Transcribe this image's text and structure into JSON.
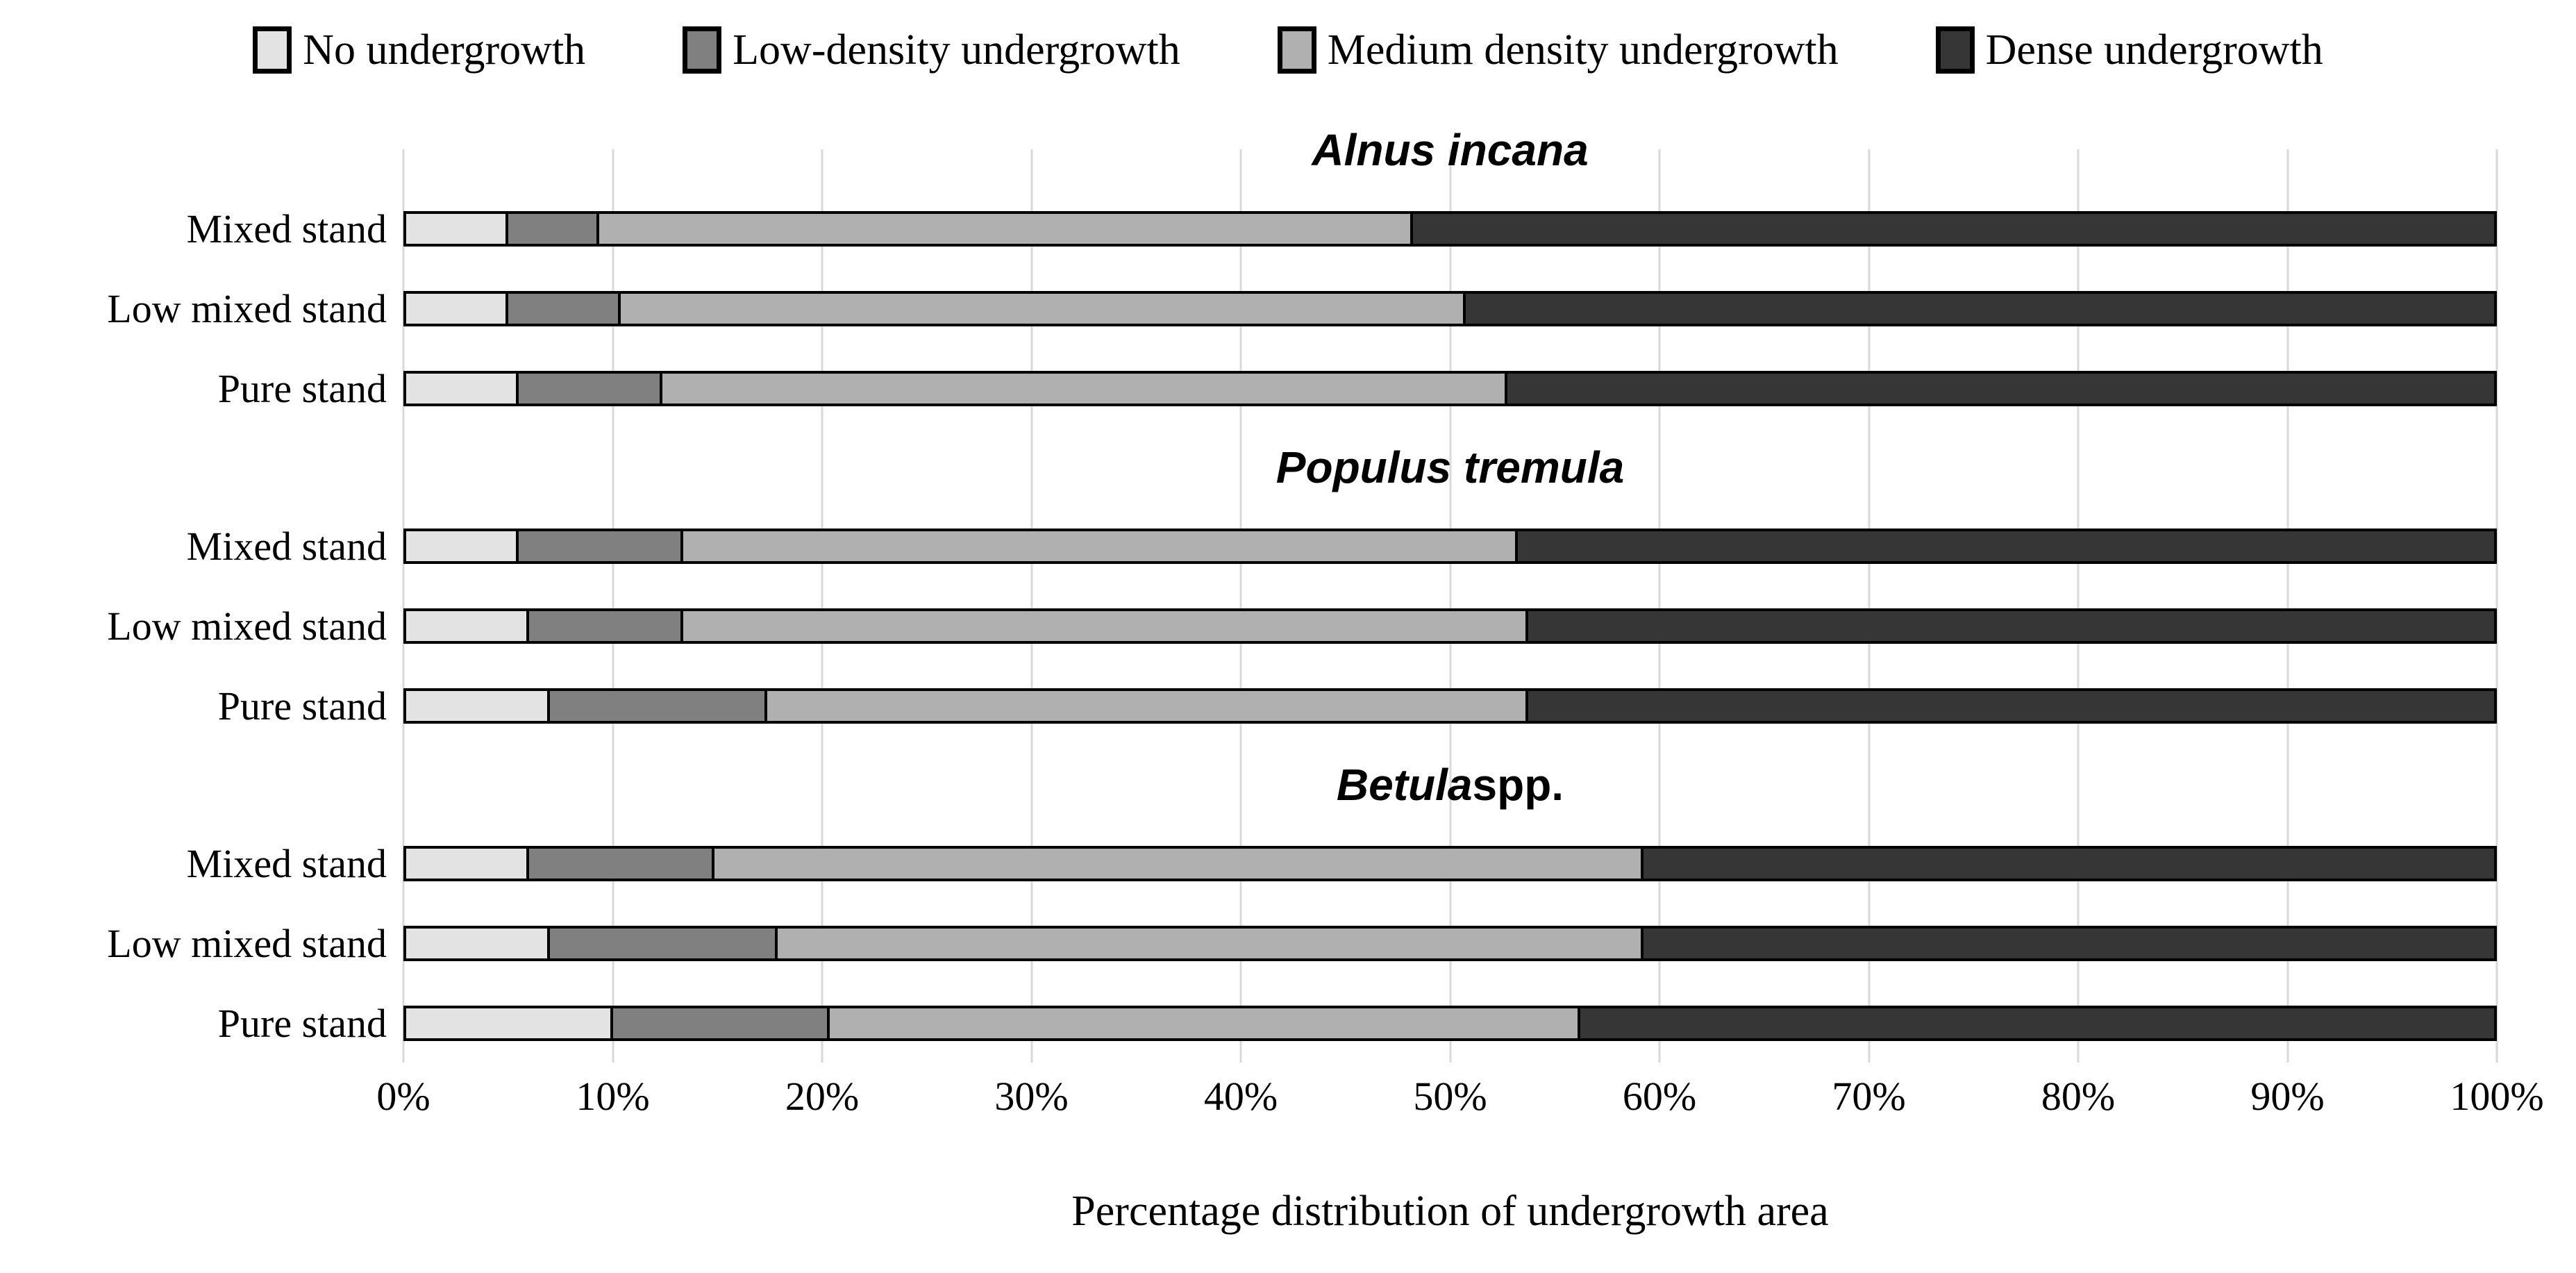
{
  "legend": {
    "items": [
      {
        "label": "No undergrowth",
        "color": "#e3e3e3"
      },
      {
        "label": "Low-density undergrowth",
        "color": "#808080"
      },
      {
        "label": "Medium density undergrowth",
        "color": "#b0b0b0"
      },
      {
        "label": "Dense undergrowth",
        "color": "#363636"
      }
    ]
  },
  "chart_data": {
    "type": "bar",
    "orientation": "horizontal_stacked",
    "stack_total": 100,
    "grid": true,
    "gridline_color": "#d9d9d9",
    "legend_position": "top",
    "xlabel": "Percentage distribution of undergrowth area",
    "xlim": [
      0,
      100
    ],
    "x_ticks": [
      "0%",
      "10%",
      "20%",
      "30%",
      "40%",
      "50%",
      "60%",
      "70%",
      "80%",
      "90%",
      "100%"
    ],
    "series_names": [
      "No undergrowth",
      "Low-density undergrowth",
      "Medium density undergrowth",
      "Dense undergrowth"
    ],
    "groups": [
      {
        "title_italic": "Alnus incana",
        "title_roman": "",
        "rows": [
          {
            "label": "Mixed stand",
            "values": [
              5,
              4.5,
              39,
              51.5
            ]
          },
          {
            "label": "Low mixed stand",
            "values": [
              5,
              5.5,
              40.5,
              49
            ]
          },
          {
            "label": "Pure stand",
            "values": [
              5.5,
              7,
              40.5,
              47
            ]
          }
        ]
      },
      {
        "title_italic": "Populus tremula",
        "title_roman": "",
        "rows": [
          {
            "label": "Mixed stand",
            "values": [
              5.5,
              8,
              40,
              46.5
            ]
          },
          {
            "label": "Low mixed stand",
            "values": [
              6,
              7.5,
              40.5,
              46
            ]
          },
          {
            "label": "Pure stand",
            "values": [
              7,
              10.5,
              36.5,
              46
            ]
          }
        ]
      },
      {
        "title_italic": "Betula",
        "title_roman": " spp.",
        "rows": [
          {
            "label": "Mixed stand",
            "values": [
              6,
              9,
              44.5,
              40.5
            ]
          },
          {
            "label": "Low mixed stand",
            "values": [
              7,
              11,
              41.5,
              40.5
            ]
          },
          {
            "label": "Pure stand",
            "values": [
              10,
              10.5,
              36,
              43.5
            ]
          }
        ]
      }
    ]
  }
}
